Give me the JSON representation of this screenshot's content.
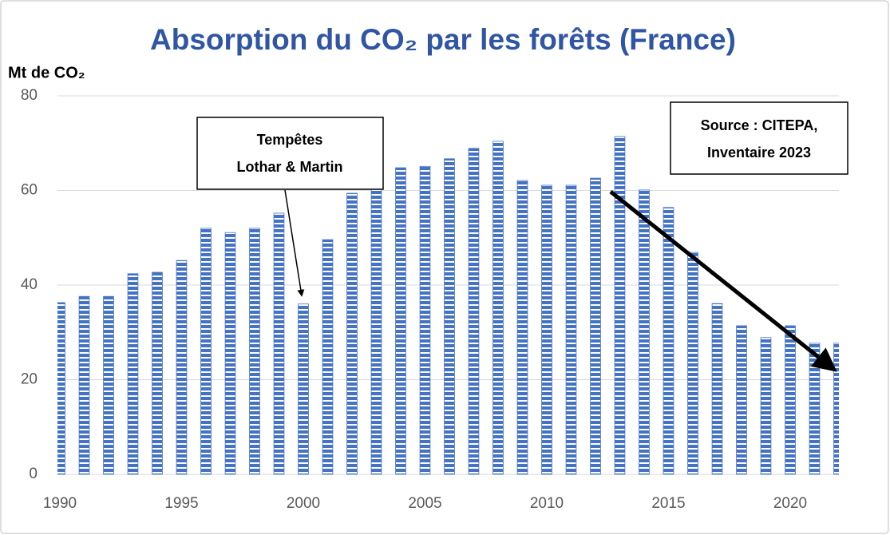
{
  "chart_data": {
    "type": "bar",
    "title": "Absorption du CO₂ par les forêts (France)",
    "y_label": "Mt de CO₂",
    "x": [
      1990,
      1991,
      1992,
      1993,
      1994,
      1995,
      1996,
      1997,
      1998,
      1999,
      2000,
      2001,
      2002,
      2003,
      2004,
      2005,
      2006,
      2007,
      2008,
      2009,
      2010,
      2011,
      2012,
      2013,
      2014,
      2015,
      2016,
      2017,
      2018,
      2019,
      2020,
      2021,
      2022
    ],
    "values": [
      36.3,
      37.6,
      37.6,
      42.4,
      42.7,
      45.2,
      52,
      51.1,
      52,
      55.2,
      36,
      49.6,
      59.4,
      62.3,
      64.8,
      65.1,
      66.7,
      68.9,
      70.4,
      62.1,
      61.1,
      61.1,
      62.6,
      71.4,
      60.1,
      56.4,
      46.9,
      36.1,
      31.4,
      28.9,
      31.4,
      27.7,
      27.7
    ],
    "color": "#4472c4",
    "xlim": [
      1990,
      2022
    ],
    "xticks": [
      1990,
      1995,
      2000,
      2005,
      2010,
      2015,
      2020
    ],
    "ylim": [
      0,
      80
    ],
    "yticks": [
      0,
      20,
      40,
      60,
      80
    ],
    "grid": true,
    "annotations": [
      {
        "lines": [
          "Tempêtes",
          "Lothar & Martin"
        ]
      },
      {
        "lines": [
          "Source : CITEPA,",
          "Inventaire 2023"
        ]
      }
    ]
  }
}
